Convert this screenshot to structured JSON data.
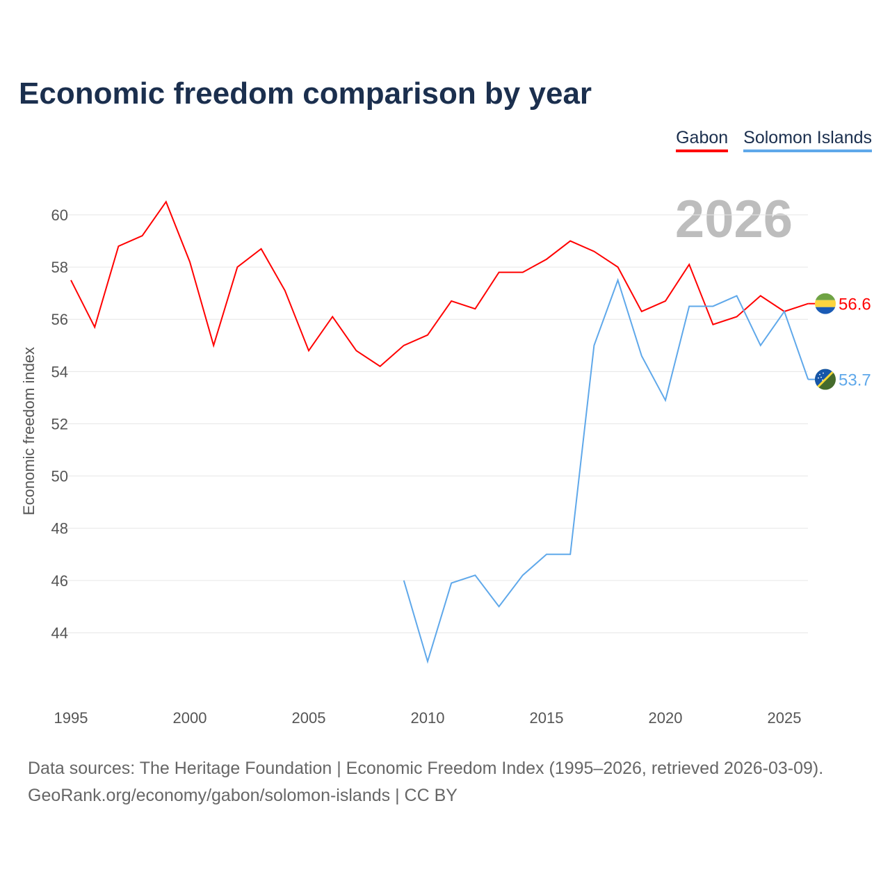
{
  "title": "Economic freedom comparison by year",
  "current_year": "2026",
  "footer": {
    "line1": "Data sources: The Heritage Foundation | Economic Freedom Index (1995–2026, retrieved 2026-03-09).",
    "line2": "GeoRank.org/economy/gabon/solomon-islands | CC BY"
  },
  "chart_data": {
    "type": "line",
    "title": "Economic freedom comparison by year",
    "xlabel": "",
    "ylabel": "Economic freedom index",
    "xlim": [
      1995,
      2026
    ],
    "ylim": [
      42,
      62
    ],
    "xticks": [
      1995,
      2000,
      2005,
      2010,
      2015,
      2020,
      2025
    ],
    "yticks": [
      44,
      46,
      48,
      50,
      52,
      54,
      56,
      58,
      60
    ],
    "grid": true,
    "legend": "top-right",
    "series": [
      {
        "name": "Gabon",
        "color": "#ff0000",
        "end_label": "56.6",
        "flag": "gabon-flag-icon",
        "x": [
          1995,
          1996,
          1997,
          1998,
          1999,
          2000,
          2001,
          2002,
          2003,
          2004,
          2005,
          2006,
          2007,
          2008,
          2009,
          2010,
          2011,
          2012,
          2013,
          2014,
          2015,
          2016,
          2017,
          2018,
          2019,
          2020,
          2021,
          2022,
          2023,
          2024,
          2025,
          2026
        ],
        "values": [
          57.5,
          55.7,
          58.8,
          59.2,
          60.5,
          58.2,
          55.0,
          58.0,
          58.7,
          57.1,
          54.8,
          56.1,
          54.8,
          54.2,
          55.0,
          55.4,
          56.7,
          56.4,
          57.8,
          57.8,
          58.3,
          59.0,
          58.6,
          58.0,
          56.3,
          56.7,
          58.1,
          55.8,
          56.1,
          56.9,
          56.3,
          56.6
        ]
      },
      {
        "name": "Solomon Islands",
        "color": "#5fa8ea",
        "end_label": "53.7",
        "flag": "solomon-islands-flag-icon",
        "x": [
          2009,
          2010,
          2011,
          2012,
          2013,
          2014,
          2015,
          2016,
          2017,
          2018,
          2019,
          2020,
          2021,
          2022,
          2023,
          2024,
          2025,
          2026
        ],
        "values": [
          46.0,
          42.9,
          45.9,
          46.2,
          45.0,
          46.2,
          47.0,
          47.0,
          55.0,
          57.5,
          54.6,
          52.9,
          56.5,
          56.5,
          56.9,
          55.0,
          56.3,
          53.7
        ]
      }
    ]
  }
}
